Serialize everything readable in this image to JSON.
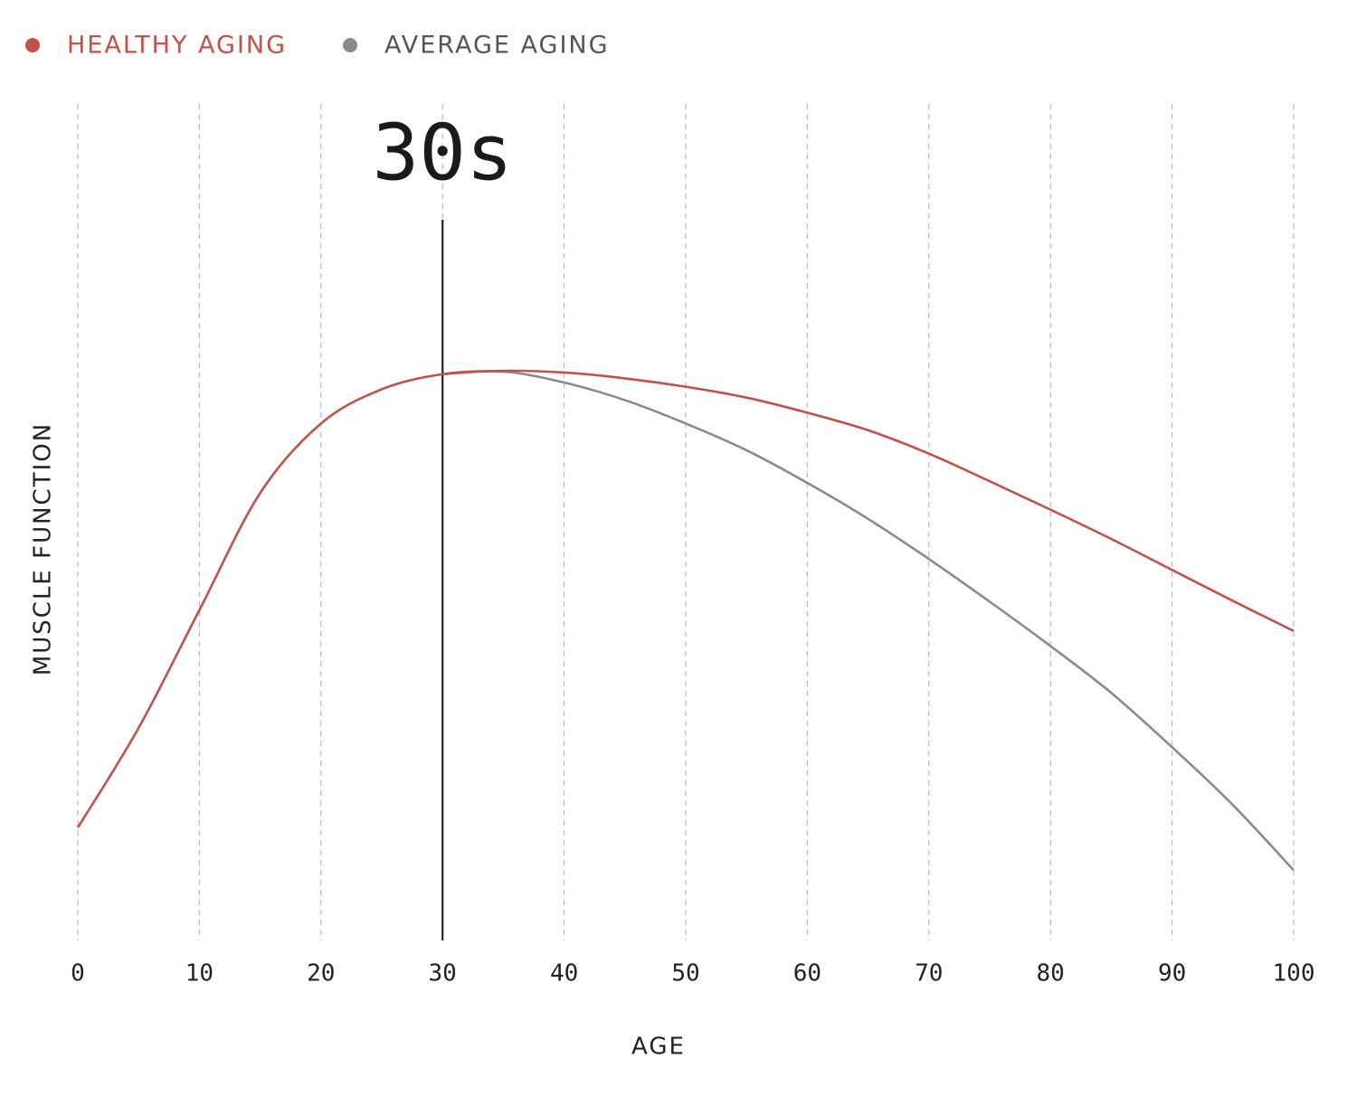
{
  "chart_data": {
    "type": "line",
    "x": [
      0,
      5,
      10,
      15,
      20,
      25,
      30,
      35,
      40,
      45,
      50,
      55,
      60,
      65,
      70,
      75,
      80,
      85,
      90,
      95,
      100
    ],
    "series": [
      {
        "name": "HEALTHY AGING",
        "color": "#c4504a",
        "values": [
          13.5,
          25.4,
          39.5,
          53.5,
          61.8,
          65.9,
          67.7,
          68.1,
          67.9,
          67.2,
          66.2,
          64.9,
          63.1,
          61.0,
          58.2,
          54.9,
          51.5,
          48.0,
          44.3,
          40.6,
          37.0
        ]
      },
      {
        "name": "AVERAGE AGING",
        "color": "#8a8a8a",
        "values": [
          null,
          null,
          null,
          null,
          null,
          null,
          67.7,
          68.0,
          66.7,
          64.6,
          61.8,
          58.6,
          54.7,
          50.4,
          45.6,
          40.5,
          35.2,
          29.6,
          23.1,
          16.2,
          8.4
        ]
      }
    ],
    "xlabel": "AGE",
    "ylabel": "MUSCLE FUNCTION",
    "xlim": [
      0,
      100
    ],
    "xticks": [
      0,
      10,
      20,
      30,
      40,
      50,
      60,
      70,
      80,
      90,
      100
    ],
    "ylim": [
      0,
      100
    ],
    "grid": true,
    "annotations": [
      {
        "x": 30,
        "label": "30s"
      }
    ]
  }
}
